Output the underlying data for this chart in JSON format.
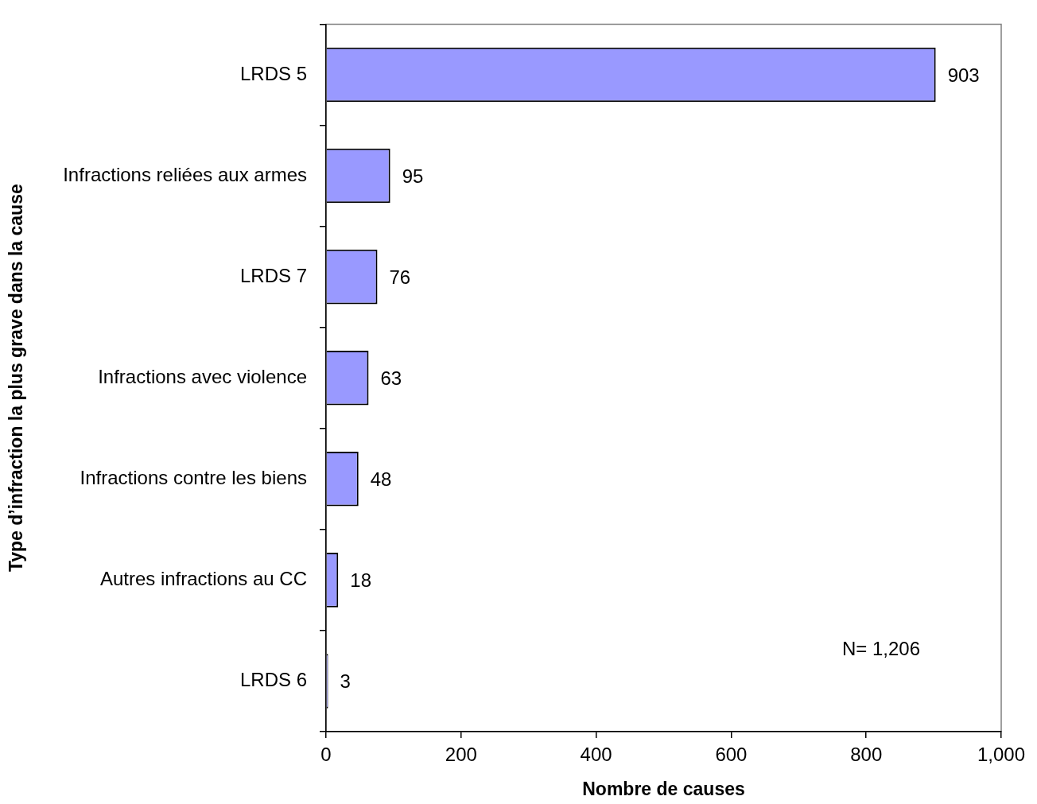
{
  "chart_data": {
    "type": "bar",
    "orientation": "horizontal",
    "xlabel": "Nombre de causes",
    "ylabel": "Type d’infraction la plus grave dans la cause",
    "categories": [
      "LRDS 5",
      "Infractions reliées aux armes",
      "LRDS 7",
      "Infractions avec violence",
      "Infractions contre les biens",
      "Autres infractions au CC",
      "LRDS 6"
    ],
    "values": [
      903,
      95,
      76,
      63,
      48,
      18,
      3
    ],
    "color": "#9999ff",
    "xlim": [
      0,
      1000
    ],
    "xticks": [
      0,
      200,
      400,
      600,
      800,
      {
        "value": 1000,
        "label": "1,000"
      }
    ],
    "grid": false,
    "legend": false,
    "data_labels": true,
    "annotations": [
      "N= 1,206"
    ]
  }
}
